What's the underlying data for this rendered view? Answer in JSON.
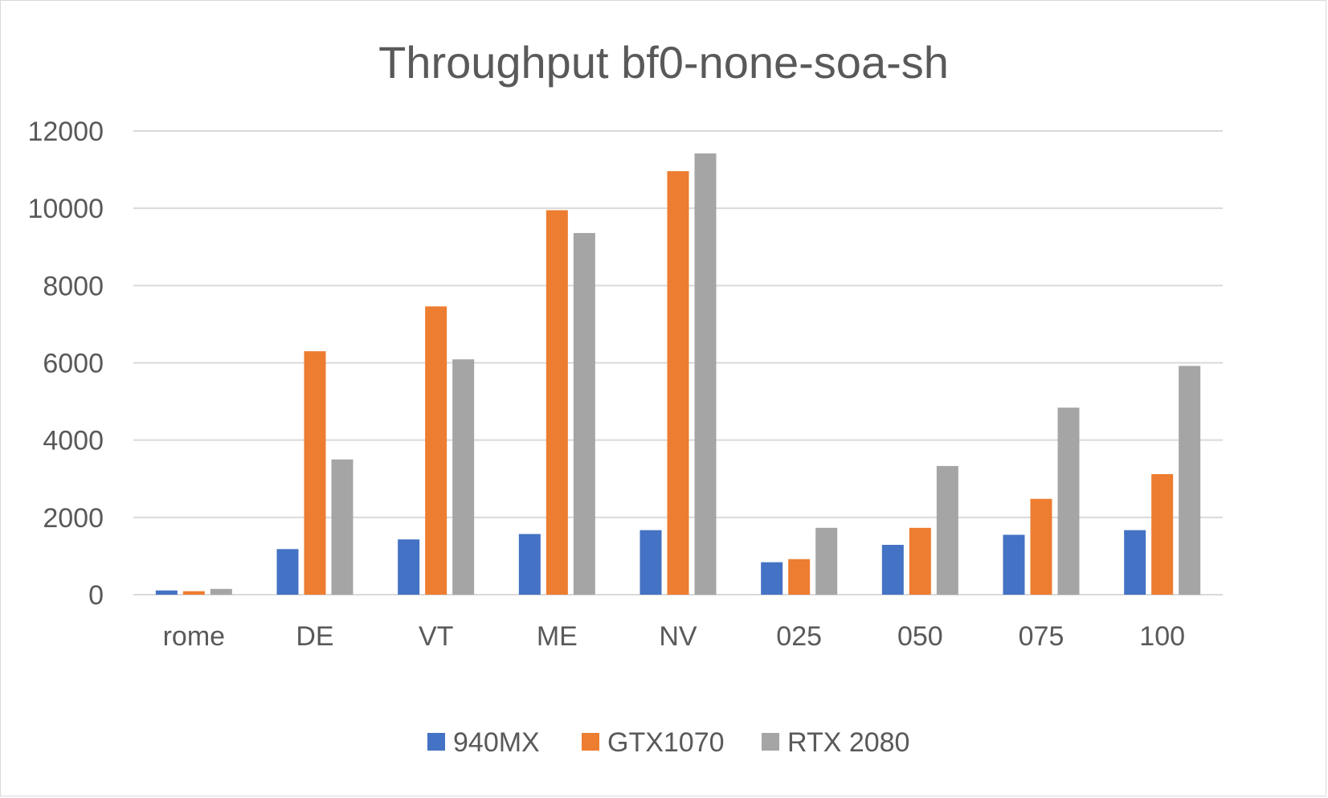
{
  "chart_data": {
    "type": "bar",
    "title": "Throughput bf0-none-soa-sh",
    "xlabel": "",
    "ylabel": "",
    "categories": [
      "rome",
      "DE",
      "VT",
      "ME",
      "NV",
      "025",
      "050",
      "075",
      "100"
    ],
    "series": [
      {
        "name": "940MX",
        "color": "#4472c4",
        "values": [
          110,
          1180,
          1430,
          1570,
          1670,
          840,
          1290,
          1550,
          1670
        ]
      },
      {
        "name": "GTX1070",
        "color": "#ed7d31",
        "values": [
          90,
          6300,
          7460,
          9950,
          10960,
          920,
          1730,
          2480,
          3120
        ]
      },
      {
        "name": "RTX 2080",
        "color": "#a5a5a5",
        "values": [
          150,
          3500,
          6090,
          9360,
          11420,
          1730,
          3330,
          4840,
          5920
        ]
      }
    ],
    "yticks": [
      "0",
      "2000",
      "4000",
      "6000",
      "8000",
      "10000",
      "12000"
    ],
    "ylim": [
      0,
      12000
    ],
    "grid": true,
    "legend_position": "bottom"
  }
}
